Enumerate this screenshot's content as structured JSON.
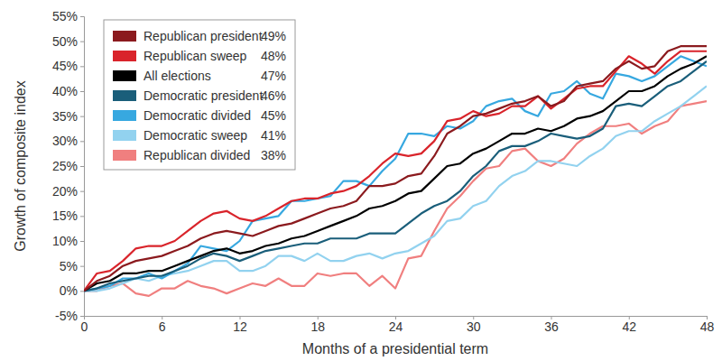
{
  "chart_data": {
    "type": "line",
    "x_label": "Months of a presidential term",
    "y_label": "Growth of composite index",
    "x": [
      0,
      1,
      2,
      3,
      4,
      5,
      6,
      7,
      8,
      9,
      10,
      11,
      12,
      13,
      14,
      15,
      16,
      17,
      18,
      19,
      20,
      21,
      22,
      23,
      24,
      25,
      26,
      27,
      28,
      29,
      30,
      31,
      32,
      33,
      34,
      35,
      36,
      37,
      38,
      39,
      40,
      41,
      42,
      43,
      44,
      45,
      46,
      47,
      48
    ],
    "xlim": [
      0,
      48
    ],
    "xticks": [
      0,
      6,
      12,
      18,
      24,
      30,
      36,
      42,
      48
    ],
    "ylim": [
      -5,
      55
    ],
    "yticks": [
      {
        "value": -5,
        "label": "-5%"
      },
      {
        "value": 0,
        "label": "0%"
      },
      {
        "value": 5,
        "label": "5%"
      },
      {
        "value": 10,
        "label": "10%"
      },
      {
        "value": 15,
        "label": "15%"
      },
      {
        "value": 20,
        "label": "20%"
      },
      {
        "value": 25,
        "label": "25%"
      },
      {
        "value": 30,
        "label": "30%"
      },
      {
        "value": 35,
        "label": "35%"
      },
      {
        "value": 40,
        "label": "40%"
      },
      {
        "value": 45,
        "label": "45%"
      },
      {
        "value": 50,
        "label": "50%"
      },
      {
        "value": 55,
        "label": "55%"
      }
    ],
    "grid": false,
    "legend": "upper left",
    "series": [
      {
        "name": "Republican president",
        "color": "#8b1a1e",
        "total": {
          "value": 49,
          "label": "49%"
        },
        "values": [
          0,
          2,
          3,
          5,
          6,
          6.5,
          7,
          8,
          9,
          10.5,
          11.5,
          12,
          11.5,
          11,
          12,
          13,
          13.5,
          14.5,
          15.5,
          16.5,
          17,
          18,
          21,
          21,
          21.5,
          23,
          23.5,
          27,
          31.5,
          33,
          35,
          35.5,
          36.5,
          37.5,
          38,
          39,
          37,
          38,
          41,
          41.5,
          42,
          44.5,
          46,
          44.5,
          45,
          48,
          49,
          49,
          49
        ]
      },
      {
        "name": "Republican sweep",
        "color": "#d9242b",
        "total": {
          "value": 48,
          "label": "48%"
        },
        "values": [
          0,
          3.5,
          4,
          6,
          8.5,
          9,
          9,
          10,
          12,
          14,
          15.5,
          16,
          14.5,
          14,
          15,
          16.5,
          18,
          18.5,
          18.5,
          19.5,
          20,
          21,
          23,
          25.5,
          27.5,
          27,
          27.5,
          30,
          34,
          34.5,
          36,
          35,
          35.5,
          37,
          37,
          39,
          36.5,
          38.5,
          40.5,
          41,
          41,
          44,
          47,
          45.5,
          43.5,
          46,
          48,
          48,
          48
        ]
      },
      {
        "name": "All elections",
        "color": "#000000",
        "total": {
          "value": 47,
          "label": "47%"
        },
        "values": [
          0,
          1.5,
          2,
          3.5,
          3.5,
          4,
          4,
          5,
          6,
          7,
          8,
          8.5,
          7.5,
          8,
          9,
          9.5,
          10.5,
          11,
          12,
          13,
          14,
          15,
          16.5,
          17,
          18,
          19.5,
          20,
          22.5,
          25,
          25.5,
          27.5,
          28.5,
          30,
          31.5,
          31.5,
          32.5,
          32,
          33,
          34.5,
          35,
          36,
          38,
          40,
          40,
          41,
          43,
          44.5,
          45.5,
          47
        ]
      },
      {
        "name": "Democratic president",
        "color": "#1a5e7a",
        "total": {
          "value": 46,
          "label": "46%"
        },
        "values": [
          0,
          0.5,
          1.5,
          2,
          2.5,
          3,
          3,
          4,
          5,
          6.5,
          7.5,
          7,
          6,
          7,
          8,
          8.5,
          9,
          9.5,
          9.5,
          10.5,
          10.5,
          10.5,
          11.5,
          11.5,
          11.5,
          13.5,
          15.5,
          17,
          18,
          20,
          23,
          25,
          28,
          29,
          29,
          30,
          31.5,
          31,
          30.5,
          31,
          32.5,
          37,
          37.5,
          37,
          39,
          41,
          42,
          44,
          46
        ]
      },
      {
        "name": "Democratic divided",
        "color": "#37a8e0",
        "total": {
          "value": 45,
          "label": "45%"
        },
        "values": [
          0,
          0.5,
          1,
          2.5,
          2.5,
          3.5,
          2.5,
          4,
          5.5,
          9,
          8.5,
          8,
          10,
          14,
          14.5,
          15,
          18,
          18,
          18.5,
          19,
          22,
          22,
          21,
          24,
          26.5,
          31.5,
          31.5,
          31,
          33,
          32.5,
          34,
          37,
          38,
          38.5,
          36,
          35,
          39.5,
          40,
          42,
          39.5,
          38.5,
          43.5,
          43,
          42,
          43,
          45,
          47,
          46,
          45
        ]
      },
      {
        "name": "Democratic sweep",
        "color": "#92d2ef",
        "total": {
          "value": 41,
          "label": "41%"
        },
        "values": [
          0,
          0,
          0.5,
          1.5,
          2.5,
          2,
          3,
          3.5,
          4,
          5,
          6,
          6,
          4,
          4,
          5,
          7,
          7,
          6,
          7.5,
          6,
          6,
          7,
          7.5,
          6.5,
          7.5,
          8,
          9.5,
          11,
          14,
          14.5,
          17,
          18,
          21,
          23,
          24,
          26,
          26,
          25.5,
          25,
          27,
          28.5,
          31,
          32,
          32,
          34,
          35.5,
          37,
          39,
          41
        ]
      },
      {
        "name": "Republican divided",
        "color": "#f07f7f",
        "total": {
          "value": 38,
          "label": "38%"
        },
        "values": [
          0,
          0,
          1,
          1.5,
          -0.5,
          -1,
          0.5,
          0.5,
          2,
          1,
          0.5,
          -0.5,
          0.5,
          1.5,
          1,
          2.5,
          1,
          1,
          3.5,
          3,
          3.5,
          3.5,
          1,
          3,
          0.5,
          6.5,
          7,
          12,
          16.5,
          19,
          22,
          24.5,
          25,
          28,
          28.5,
          26,
          25,
          26.5,
          29.5,
          31.5,
          33,
          33,
          33.5,
          31.5,
          33,
          34,
          37,
          37.5,
          38
        ]
      }
    ]
  }
}
